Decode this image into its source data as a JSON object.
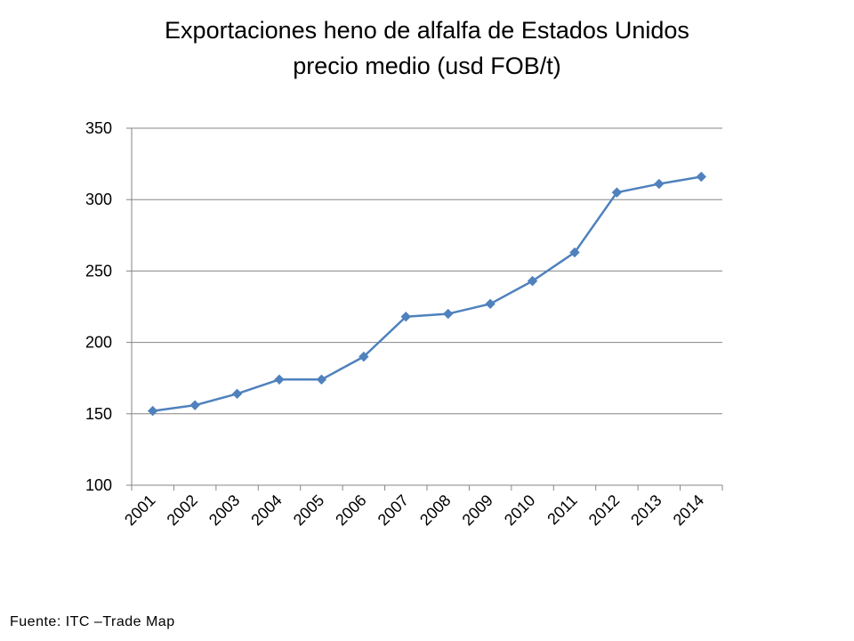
{
  "title_line1": "Exportaciones heno de alfalfa de Estados Unidos",
  "title_line2": "precio medio (usd FOB/t)",
  "source": "Fuente: ITC –Trade Map",
  "chart_data": {
    "type": "line",
    "title": "Exportaciones heno de alfalfa de Estados Unidos precio medio (usd FOB/t)",
    "xlabel": "",
    "ylabel": "",
    "categories": [
      "2001",
      "2002",
      "2003",
      "2004",
      "2005",
      "2006",
      "2007",
      "2008",
      "2009",
      "2010",
      "2011",
      "2012",
      "2013",
      "2014"
    ],
    "series": [
      {
        "values": [
          152,
          156,
          164,
          174,
          174,
          190,
          218,
          220,
          227,
          243,
          263,
          305,
          311,
          316
        ]
      }
    ],
    "ylim": [
      100,
      350
    ],
    "yticks": [
      100,
      150,
      200,
      250,
      300,
      350
    ],
    "grid": true,
    "legend": "none",
    "line_color": "#4f81bd"
  }
}
